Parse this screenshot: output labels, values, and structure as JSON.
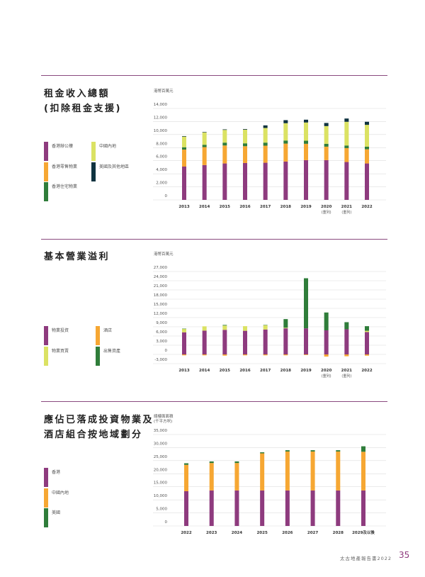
{
  "colors": {
    "purple": "#8e3b7e",
    "orange": "#f6a733",
    "green": "#2f7d3a",
    "yellow": "#dbe263",
    "navy": "#0f3340",
    "divider": "#8a4a7e"
  },
  "sections": [
    {
      "title_lines": [
        "租金收入總額",
        "(扣除租金支援)"
      ],
      "unit_lines": [
        "港幣百萬元"
      ],
      "legend": [
        {
          "label": "香港辦公樓",
          "color": "#8e3b7e"
        },
        {
          "label": "中國內地",
          "color": "#dbe263"
        },
        {
          "label": "香港零售物業",
          "color": "#f6a733"
        },
        {
          "label": "美國及其他地區",
          "color": "#0f3340"
        },
        {
          "label": "香港住宅物業",
          "color": "#2f7d3a"
        }
      ]
    },
    {
      "title_lines": [
        "基本營業溢利"
      ],
      "unit_lines": [
        "港幣百萬元"
      ],
      "legend": [
        {
          "label": "物業投資",
          "color": "#8e3b7e"
        },
        {
          "label": "酒店",
          "color": "#f6a733"
        },
        {
          "label": "物業買賣",
          "color": "#dbe263"
        },
        {
          "label": "出售資產",
          "color": "#2f7d3a"
        }
      ]
    },
    {
      "title_lines": [
        "應佔已落成投資物業及",
        "酒店組合按地域劃分"
      ],
      "unit_lines": [
        "總樓面面積",
        "(千平方呎)"
      ],
      "legend": [
        {
          "label": "香港",
          "color": "#8e3b7e"
        },
        {
          "label": "中國內地",
          "color": "#f6a733"
        },
        {
          "label": "美國",
          "color": "#2f7d3a"
        }
      ]
    }
  ],
  "chart_data": [
    {
      "type": "bar",
      "stacked": true,
      "title": "租金收入總額 (扣除租金支援)",
      "ylabel": "港幣百萬元",
      "ylim": [
        0,
        14000
      ],
      "yticks": [
        0,
        2000,
        4000,
        6000,
        8000,
        10000,
        12000,
        14000
      ],
      "grid": true,
      "categories": [
        "2013",
        "2014",
        "2015",
        "2016",
        "2017",
        "2018",
        "2019",
        "2020",
        "2021",
        "2022"
      ],
      "category_notes": [
        "",
        "",
        "",
        "",
        "",
        "",
        "",
        "(重列)",
        "(重列)",
        ""
      ],
      "series": [
        {
          "name": "香港辦公樓",
          "color": "#8e3b7e",
          "values": [
            5100,
            5330,
            5580,
            5650,
            5690,
            5870,
            6090,
            6090,
            5800,
            5580
          ]
        },
        {
          "name": "香港零售物業",
          "color": "#f6a733",
          "values": [
            2600,
            2750,
            2750,
            2570,
            2610,
            2750,
            2500,
            2060,
            2130,
            2170
          ]
        },
        {
          "name": "香港住宅物業",
          "color": "#2f7d3a",
          "values": [
            360,
            360,
            440,
            440,
            470,
            470,
            470,
            440,
            400,
            400
          ]
        },
        {
          "name": "中國內地",
          "color": "#dbe263",
          "values": [
            1630,
            1890,
            1950,
            2100,
            2240,
            2650,
            2790,
            2710,
            3630,
            3340
          ]
        },
        {
          "name": "美國及其他地區",
          "color": "#0f3340",
          "values": [
            80,
            70,
            80,
            90,
            400,
            470,
            430,
            480,
            500,
            470
          ]
        }
      ]
    },
    {
      "type": "bar",
      "stacked": true,
      "title": "基本營業溢利",
      "ylabel": "港幣百萬元",
      "ylim": [
        -3000,
        27000
      ],
      "yticks": [
        -3000,
        0,
        3000,
        6000,
        9000,
        12000,
        15000,
        18000,
        21000,
        24000,
        27000
      ],
      "grid": true,
      "categories": [
        "2013",
        "2014",
        "2015",
        "2016",
        "2017",
        "2018",
        "2019",
        "2020",
        "2021",
        "2022"
      ],
      "category_notes": [
        "",
        "",
        "",
        "",
        "",
        "",
        "",
        "(重列)",
        "(重列)",
        ""
      ],
      "series": [
        {
          "name": "物業投資",
          "color": "#8e3b7e",
          "values": [
            7200,
            7750,
            8000,
            7700,
            8100,
            8500,
            8500,
            7850,
            8200,
            7300
          ]
        },
        {
          "name": "酒店",
          "color": "#f6a733",
          "values": [
            -300,
            -300,
            -400,
            -300,
            -300,
            -300,
            -200,
            -700,
            -600,
            -400
          ]
        },
        {
          "name": "物業買賣",
          "color": "#dbe263",
          "values": [
            1100,
            1400,
            1400,
            1500,
            1400,
            200,
            0,
            0,
            0,
            400
          ]
        },
        {
          "name": "出售資產",
          "color": "#2f7d3a",
          "values": [
            100,
            0,
            200,
            0,
            100,
            2800,
            16300,
            5800,
            2300,
            1500
          ]
        }
      ]
    },
    {
      "type": "bar",
      "stacked": true,
      "title": "應佔已落成投資物業及酒店組合按地域劃分",
      "ylabel": "總樓面面積 (千平方呎)",
      "ylim": [
        0,
        35000
      ],
      "yticks": [
        0,
        5000,
        10000,
        15000,
        20000,
        25000,
        30000,
        35000
      ],
      "grid": true,
      "categories": [
        "2022",
        "2023",
        "2024",
        "2025",
        "2026",
        "2027",
        "2028",
        "2029及以後"
      ],
      "category_notes": [
        "",
        "",
        "",
        "",
        "",
        "",
        "",
        ""
      ],
      "series": [
        {
          "name": "香港",
          "color": "#8e3b7e",
          "values": [
            13300,
            13600,
            13600,
            13600,
            13600,
            13600,
            13600,
            13600
          ]
        },
        {
          "name": "中國內地",
          "color": "#f6a733",
          "values": [
            10100,
            10500,
            10500,
            14200,
            14900,
            14900,
            14900,
            14800
          ]
        },
        {
          "name": "美國",
          "color": "#2f7d3a",
          "values": [
            600,
            600,
            600,
            400,
            500,
            500,
            500,
            2100
          ]
        }
      ]
    }
  ],
  "footer": {
    "report": "太古地產報告書2022",
    "page": "35"
  }
}
